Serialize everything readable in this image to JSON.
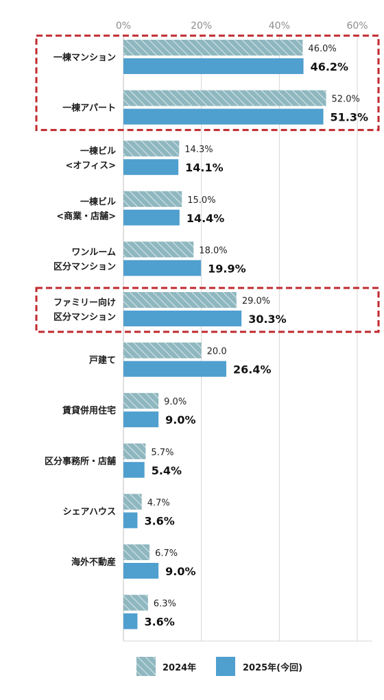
{
  "chart_data": {
    "type": "bar",
    "orientation": "horizontal",
    "xlim": [
      0,
      60
    ],
    "x_ticks": [
      "0%",
      "20%",
      "40%",
      "60%"
    ],
    "grid": true,
    "legend_position": "bottom",
    "categories": [
      [
        "一棟マンション"
      ],
      [
        "一棟アパート"
      ],
      [
        "一棟ビル",
        "<オフィス>"
      ],
      [
        "一棟ビル",
        "<商業・店舗>"
      ],
      [
        "ワンルーム",
        "区分マンション"
      ],
      [
        "ファミリー向け",
        "区分マンション"
      ],
      [
        "戸建て"
      ],
      [
        "賃貸併用住宅"
      ],
      [
        "区分事務所・店舗"
      ],
      [
        "シェアハウス"
      ],
      [
        "海外不動産"
      ],
      [
        ""
      ]
    ],
    "series": [
      {
        "name": "2024年",
        "color": "#8fb7bf",
        "pattern": "diagonal-hatch",
        "values": [
          46.0,
          52.0,
          14.3,
          15.0,
          18.0,
          29.0,
          20.0,
          9.0,
          5.7,
          4.7,
          6.7,
          6.3
        ],
        "labels": [
          "46.0%",
          "52.0%",
          "14.3%",
          "15.0%",
          "18.0%",
          "29.0%",
          "20.0",
          "9.0%",
          "5.7%",
          "4.7%",
          "6.7%",
          "6.3%"
        ]
      },
      {
        "name": "2025年(今回)",
        "color": "#4f9fcf",
        "pattern": "solid",
        "values": [
          46.2,
          51.3,
          14.1,
          14.4,
          19.9,
          30.3,
          26.4,
          9.0,
          5.4,
          3.6,
          9.0,
          3.6
        ],
        "labels": [
          "46.2%",
          "51.3%",
          "14.1%",
          "14.4%",
          "19.9%",
          "30.3%",
          "26.4%",
          "9.0%",
          "5.4%",
          "3.6%",
          "9.0%",
          "3.6%"
        ]
      }
    ],
    "highlight_color": "#c0282d",
    "highlight_groups": [
      [
        0,
        1
      ],
      [
        5
      ]
    ]
  }
}
